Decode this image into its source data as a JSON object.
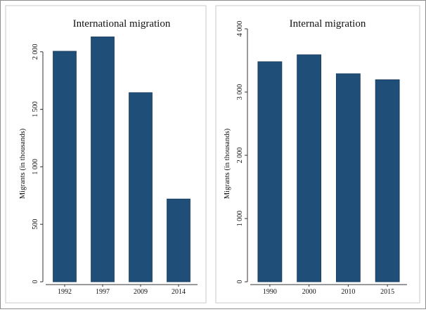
{
  "chart_data": [
    {
      "type": "bar",
      "title": "International migration",
      "categories": [
        "1992",
        "1997",
        "2009",
        "2014"
      ],
      "values": [
        2005,
        2130,
        1645,
        720
      ],
      "xlabel": "",
      "ylabel": "Migrants (in thousands)",
      "ylim": [
        0,
        2200
      ],
      "yticks": [
        0,
        500,
        1000,
        1500,
        2000
      ],
      "ytick_labels": [
        "0",
        "500",
        "1 000",
        "1 500",
        "2 000"
      ],
      "grid": false,
      "bar_color": "#1f4e79"
    },
    {
      "type": "bar",
      "title": "Internal migration",
      "categories": [
        "1990",
        "2000",
        "2010",
        "2015"
      ],
      "values": [
        3480,
        3590,
        3290,
        3195
      ],
      "xlabel": "",
      "ylabel": "Migrants (in thousands)",
      "ylim": [
        0,
        4000
      ],
      "yticks": [
        0,
        1000,
        2000,
        3000,
        4000
      ],
      "ytick_labels": [
        "0",
        "1 000",
        "2 000",
        "3 000",
        "4 000"
      ],
      "grid": false,
      "bar_color": "#1f4e79"
    }
  ],
  "colors": {
    "bar": "#1f4e79",
    "bar_edge": "#163a5c",
    "frame": "#8c8c8c",
    "axis": "#333333"
  }
}
